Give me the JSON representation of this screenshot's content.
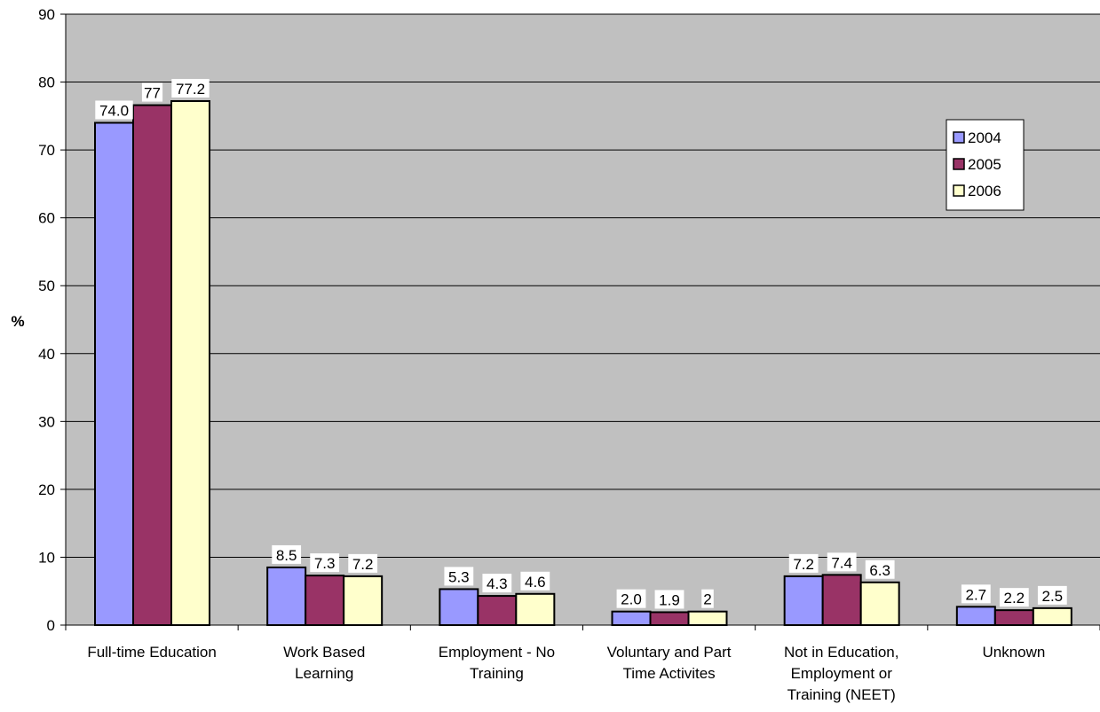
{
  "chart_data": {
    "type": "bar",
    "title": "",
    "xlabel": "",
    "ylabel": "%",
    "ylim": [
      0,
      90
    ],
    "ytick_step": 10,
    "grid": true,
    "legend_position": "top-right",
    "plot_background": "#c0c0c0",
    "categories": [
      [
        "Full-time Education"
      ],
      [
        "Work Based",
        "Learning"
      ],
      [
        "Employment - No",
        "Training"
      ],
      [
        "Voluntary and Part",
        "Time Activites"
      ],
      [
        "Not in Education,",
        "Employment or",
        "Training (NEET)"
      ],
      [
        "Unknown"
      ]
    ],
    "series": [
      {
        "name": "2004",
        "color": "#9999ff",
        "values": [
          74.0,
          8.5,
          5.3,
          2.0,
          7.2,
          2.7
        ],
        "labels": [
          "74.0",
          "8.5",
          "5.3",
          "2.0",
          "7.2",
          "2.7"
        ]
      },
      {
        "name": "2005",
        "color": "#993366",
        "values": [
          76.6,
          7.3,
          4.3,
          1.9,
          7.4,
          2.2
        ],
        "labels": [
          "77",
          "7.3",
          "4.3",
          "1.9",
          "7.4",
          "2.2"
        ]
      },
      {
        "name": "2006",
        "color": "#ffffcc",
        "values": [
          77.2,
          7.2,
          4.6,
          2.0,
          6.3,
          2.5
        ],
        "labels": [
          "77.2",
          "7.2",
          "4.6",
          "2",
          "6.3",
          "2.5"
        ]
      }
    ]
  }
}
